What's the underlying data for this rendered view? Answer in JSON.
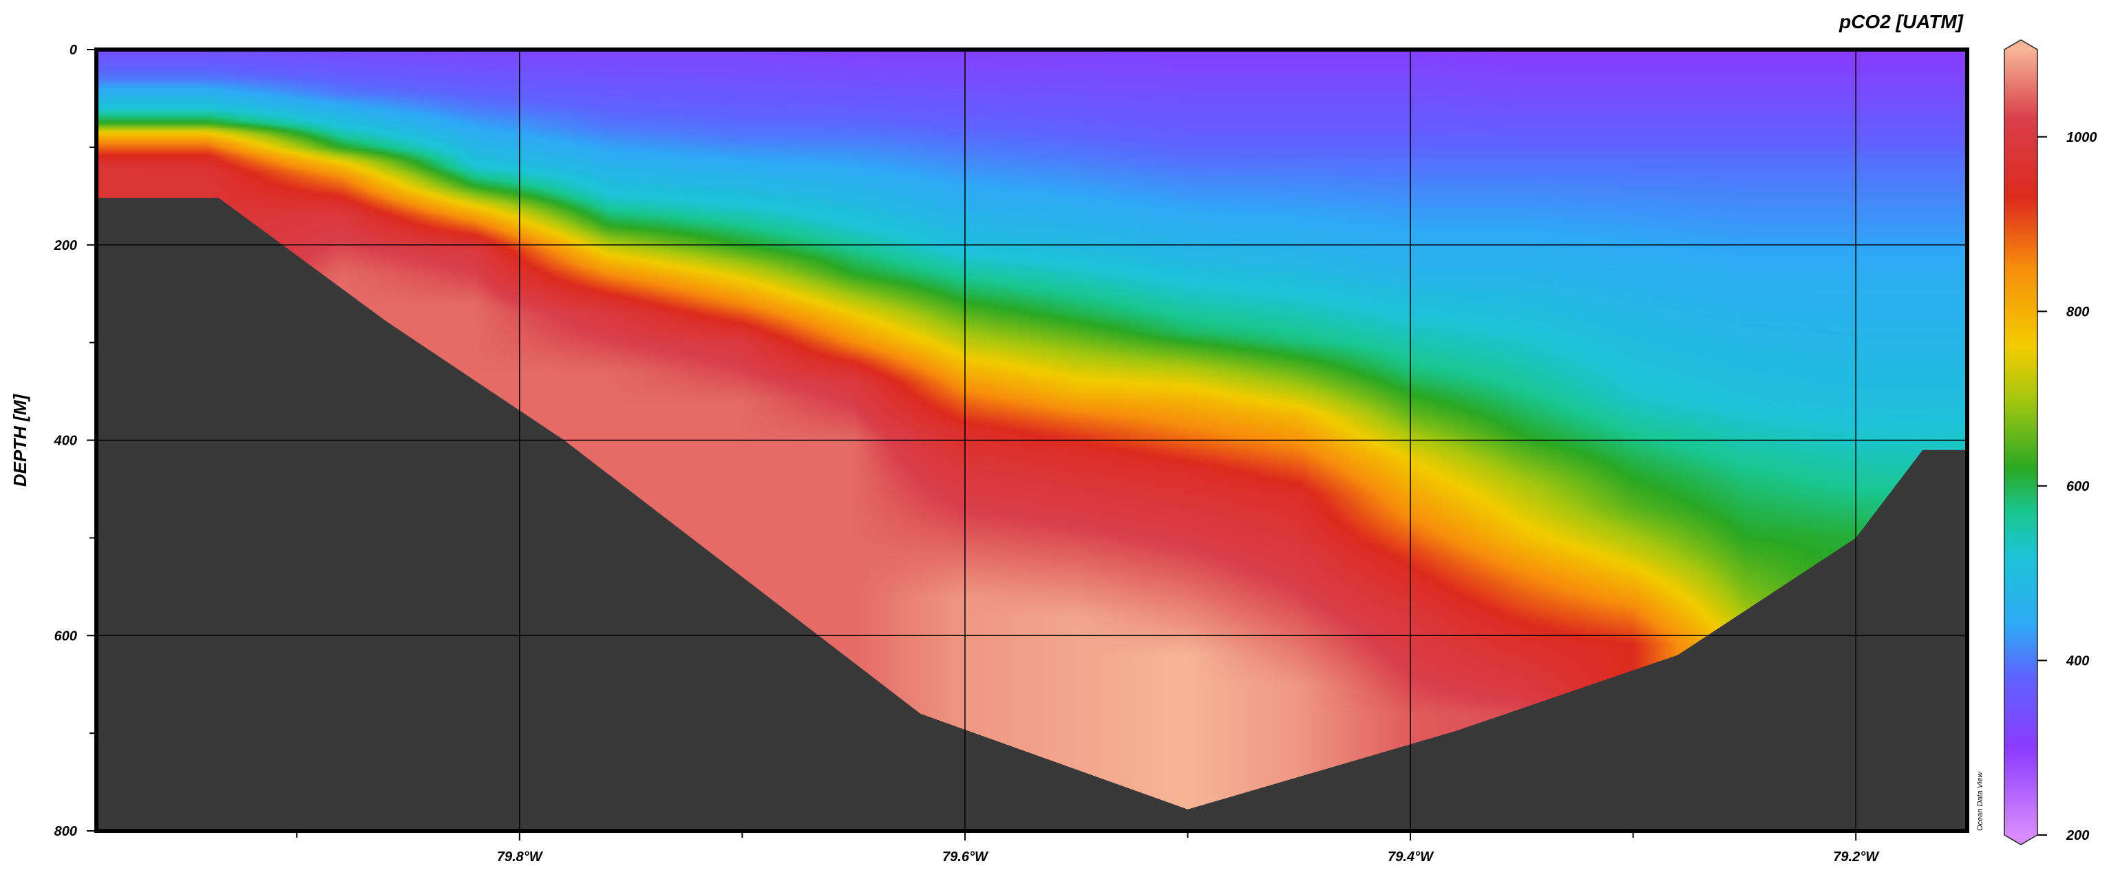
{
  "chart_data": {
    "type": "heatmap",
    "title": "pCO2 [UATM]",
    "xlabel": "",
    "ylabel": "DEPTH [M]",
    "x_unit": "degrees W (longitude)",
    "xlim": [
      79.99,
      79.15
    ],
    "ylim": [
      0,
      800
    ],
    "y_inverted": true,
    "x_ticks": [
      {
        "value": 79.8,
        "label": "79.8°W"
      },
      {
        "value": 79.6,
        "label": "79.6°W"
      },
      {
        "value": 79.4,
        "label": "79.4°W"
      },
      {
        "value": 79.2,
        "label": "79.2°W"
      }
    ],
    "x_minor_ticks": [
      79.9,
      79.7,
      79.5,
      79.3
    ],
    "y_ticks": [
      {
        "value": 0,
        "label": "0"
      },
      {
        "value": 200,
        "label": "200"
      },
      {
        "value": 400,
        "label": "400"
      },
      {
        "value": 600,
        "label": "600"
      },
      {
        "value": 800,
        "label": "800"
      }
    ],
    "y_minor_ticks": [
      100,
      300,
      500,
      700
    ],
    "grid": true,
    "colorbar": {
      "position": "right",
      "range": [
        200,
        1100
      ],
      "ticks": [
        {
          "value": 200,
          "label": "200"
        },
        {
          "value": 400,
          "label": "400"
        },
        {
          "value": 600,
          "label": "600"
        },
        {
          "value": 800,
          "label": "800"
        },
        {
          "value": 1000,
          "label": "1000"
        }
      ],
      "stops": [
        {
          "value": 200,
          "color": "#d98cff"
        },
        {
          "value": 300,
          "color": "#8a3bff"
        },
        {
          "value": 380,
          "color": "#5f62ff"
        },
        {
          "value": 440,
          "color": "#2ea9f6"
        },
        {
          "value": 520,
          "color": "#1cc4d6"
        },
        {
          "value": 570,
          "color": "#19c68f"
        },
        {
          "value": 620,
          "color": "#2aa824"
        },
        {
          "value": 700,
          "color": "#a7c70f"
        },
        {
          "value": 760,
          "color": "#f2cc00"
        },
        {
          "value": 850,
          "color": "#f88d0c"
        },
        {
          "value": 930,
          "color": "#dd2a1e"
        },
        {
          "value": 1020,
          "color": "#d93e4a"
        },
        {
          "value": 1100,
          "color": "#f6b596"
        }
      ]
    },
    "field_profiles": [
      {
        "x": 79.99,
        "d": [
          0,
          30,
          60,
          75,
          85,
          95,
          108,
          120
        ],
        "v": [
          340,
          400,
          520,
          620,
          760,
          850,
          930,
          980
        ]
      },
      {
        "x": 79.94,
        "d": [
          0,
          30,
          60,
          75,
          85,
          95,
          108,
          125
        ],
        "v": [
          340,
          400,
          520,
          620,
          760,
          850,
          930,
          980
        ]
      },
      {
        "x": 79.88,
        "d": [
          0,
          45,
          80,
          100,
          115,
          130,
          150,
          170,
          230
        ],
        "v": [
          330,
          400,
          520,
          620,
          760,
          850,
          930,
          1000,
          1050
        ]
      },
      {
        "x": 79.82,
        "d": [
          0,
          60,
          120,
          140,
          160,
          175,
          190,
          205,
          260
        ],
        "v": [
          320,
          400,
          520,
          620,
          760,
          850,
          930,
          1000,
          1050
        ]
      },
      {
        "x": 79.76,
        "d": [
          0,
          80,
          150,
          180,
          210,
          230,
          250,
          270,
          330
        ],
        "v": [
          320,
          400,
          520,
          620,
          760,
          850,
          930,
          1000,
          1050
        ]
      },
      {
        "x": 79.7,
        "d": [
          0,
          90,
          160,
          200,
          235,
          260,
          280,
          300,
          360
        ],
        "v": [
          320,
          400,
          520,
          620,
          760,
          850,
          930,
          1000,
          1050
        ]
      },
      {
        "x": 79.65,
        "d": [
          0,
          90,
          180,
          230,
          270,
          300,
          320,
          340,
          400
        ],
        "v": [
          310,
          400,
          520,
          620,
          760,
          850,
          930,
          1000,
          1050
        ]
      },
      {
        "x": 79.6,
        "d": [
          0,
          100,
          200,
          250,
          300,
          330,
          360,
          390,
          440,
          560
        ],
        "v": [
          310,
          400,
          500,
          600,
          720,
          800,
          880,
          950,
          1000,
          1080
        ]
      },
      {
        "x": 79.55,
        "d": [
          0,
          110,
          210,
          270,
          320,
          350,
          380,
          410,
          460,
          580
        ],
        "v": [
          310,
          400,
          500,
          600,
          720,
          790,
          880,
          950,
          1000,
          1090
        ]
      },
      {
        "x": 79.5,
        "d": [
          0,
          110,
          220,
          290,
          330,
          360,
          400,
          430,
          480,
          620
        ],
        "v": [
          310,
          390,
          490,
          590,
          720,
          800,
          880,
          950,
          1000,
          1100
        ]
      },
      {
        "x": 79.45,
        "d": [
          0,
          110,
          220,
          300,
          345,
          375,
          420,
          455,
          520,
          650
        ],
        "v": [
          310,
          390,
          480,
          580,
          700,
          790,
          880,
          950,
          1000,
          1080
        ]
      },
      {
        "x": 79.4,
        "d": [
          0,
          110,
          230,
          330,
          375,
          420,
          480,
          520,
          580,
          680
        ],
        "v": [
          310,
          390,
          470,
          580,
          660,
          760,
          850,
          920,
          990,
          1040
        ]
      },
      {
        "x": 79.35,
        "d": [
          0,
          110,
          230,
          340,
          395,
          440,
          500,
          540,
          600,
          680
        ],
        "v": [
          300,
          390,
          470,
          560,
          620,
          700,
          780,
          860,
          950,
          1030
        ]
      },
      {
        "x": 79.3,
        "d": [
          0,
          110,
          230,
          360,
          420,
          470,
          520,
          570,
          610
        ],
        "v": [
          300,
          390,
          460,
          530,
          600,
          650,
          740,
          850,
          930
        ]
      },
      {
        "x": 79.25,
        "d": [
          0,
          110,
          230,
          360,
          440,
          500,
          560,
          600
        ],
        "v": [
          300,
          390,
          450,
          510,
          580,
          620,
          680,
          730
        ]
      },
      {
        "x": 79.2,
        "d": [
          0,
          110,
          230,
          360,
          440,
          500
        ],
        "v": [
          300,
          390,
          450,
          500,
          560,
          610
        ]
      },
      {
        "x": 79.15,
        "d": [
          0,
          110,
          230,
          360,
          420,
          460
        ],
        "v": [
          300,
          390,
          450,
          500,
          540,
          570
        ]
      }
    ],
    "bathymetry": [
      {
        "x": 79.99,
        "depth": 152
      },
      {
        "x": 79.935,
        "depth": 152
      },
      {
        "x": 79.86,
        "depth": 278
      },
      {
        "x": 79.78,
        "depth": 400
      },
      {
        "x": 79.62,
        "depth": 680
      },
      {
        "x": 79.5,
        "depth": 778
      },
      {
        "x": 79.38,
        "depth": 698
      },
      {
        "x": 79.28,
        "depth": 620
      },
      {
        "x": 79.2,
        "depth": 500
      },
      {
        "x": 79.17,
        "depth": 410
      },
      {
        "x": 79.15,
        "depth": 410
      }
    ]
  },
  "colors": {
    "seafloor": "#383838",
    "axes": "#000000",
    "grid": "#000000"
  },
  "credit": "Ocean Data View"
}
